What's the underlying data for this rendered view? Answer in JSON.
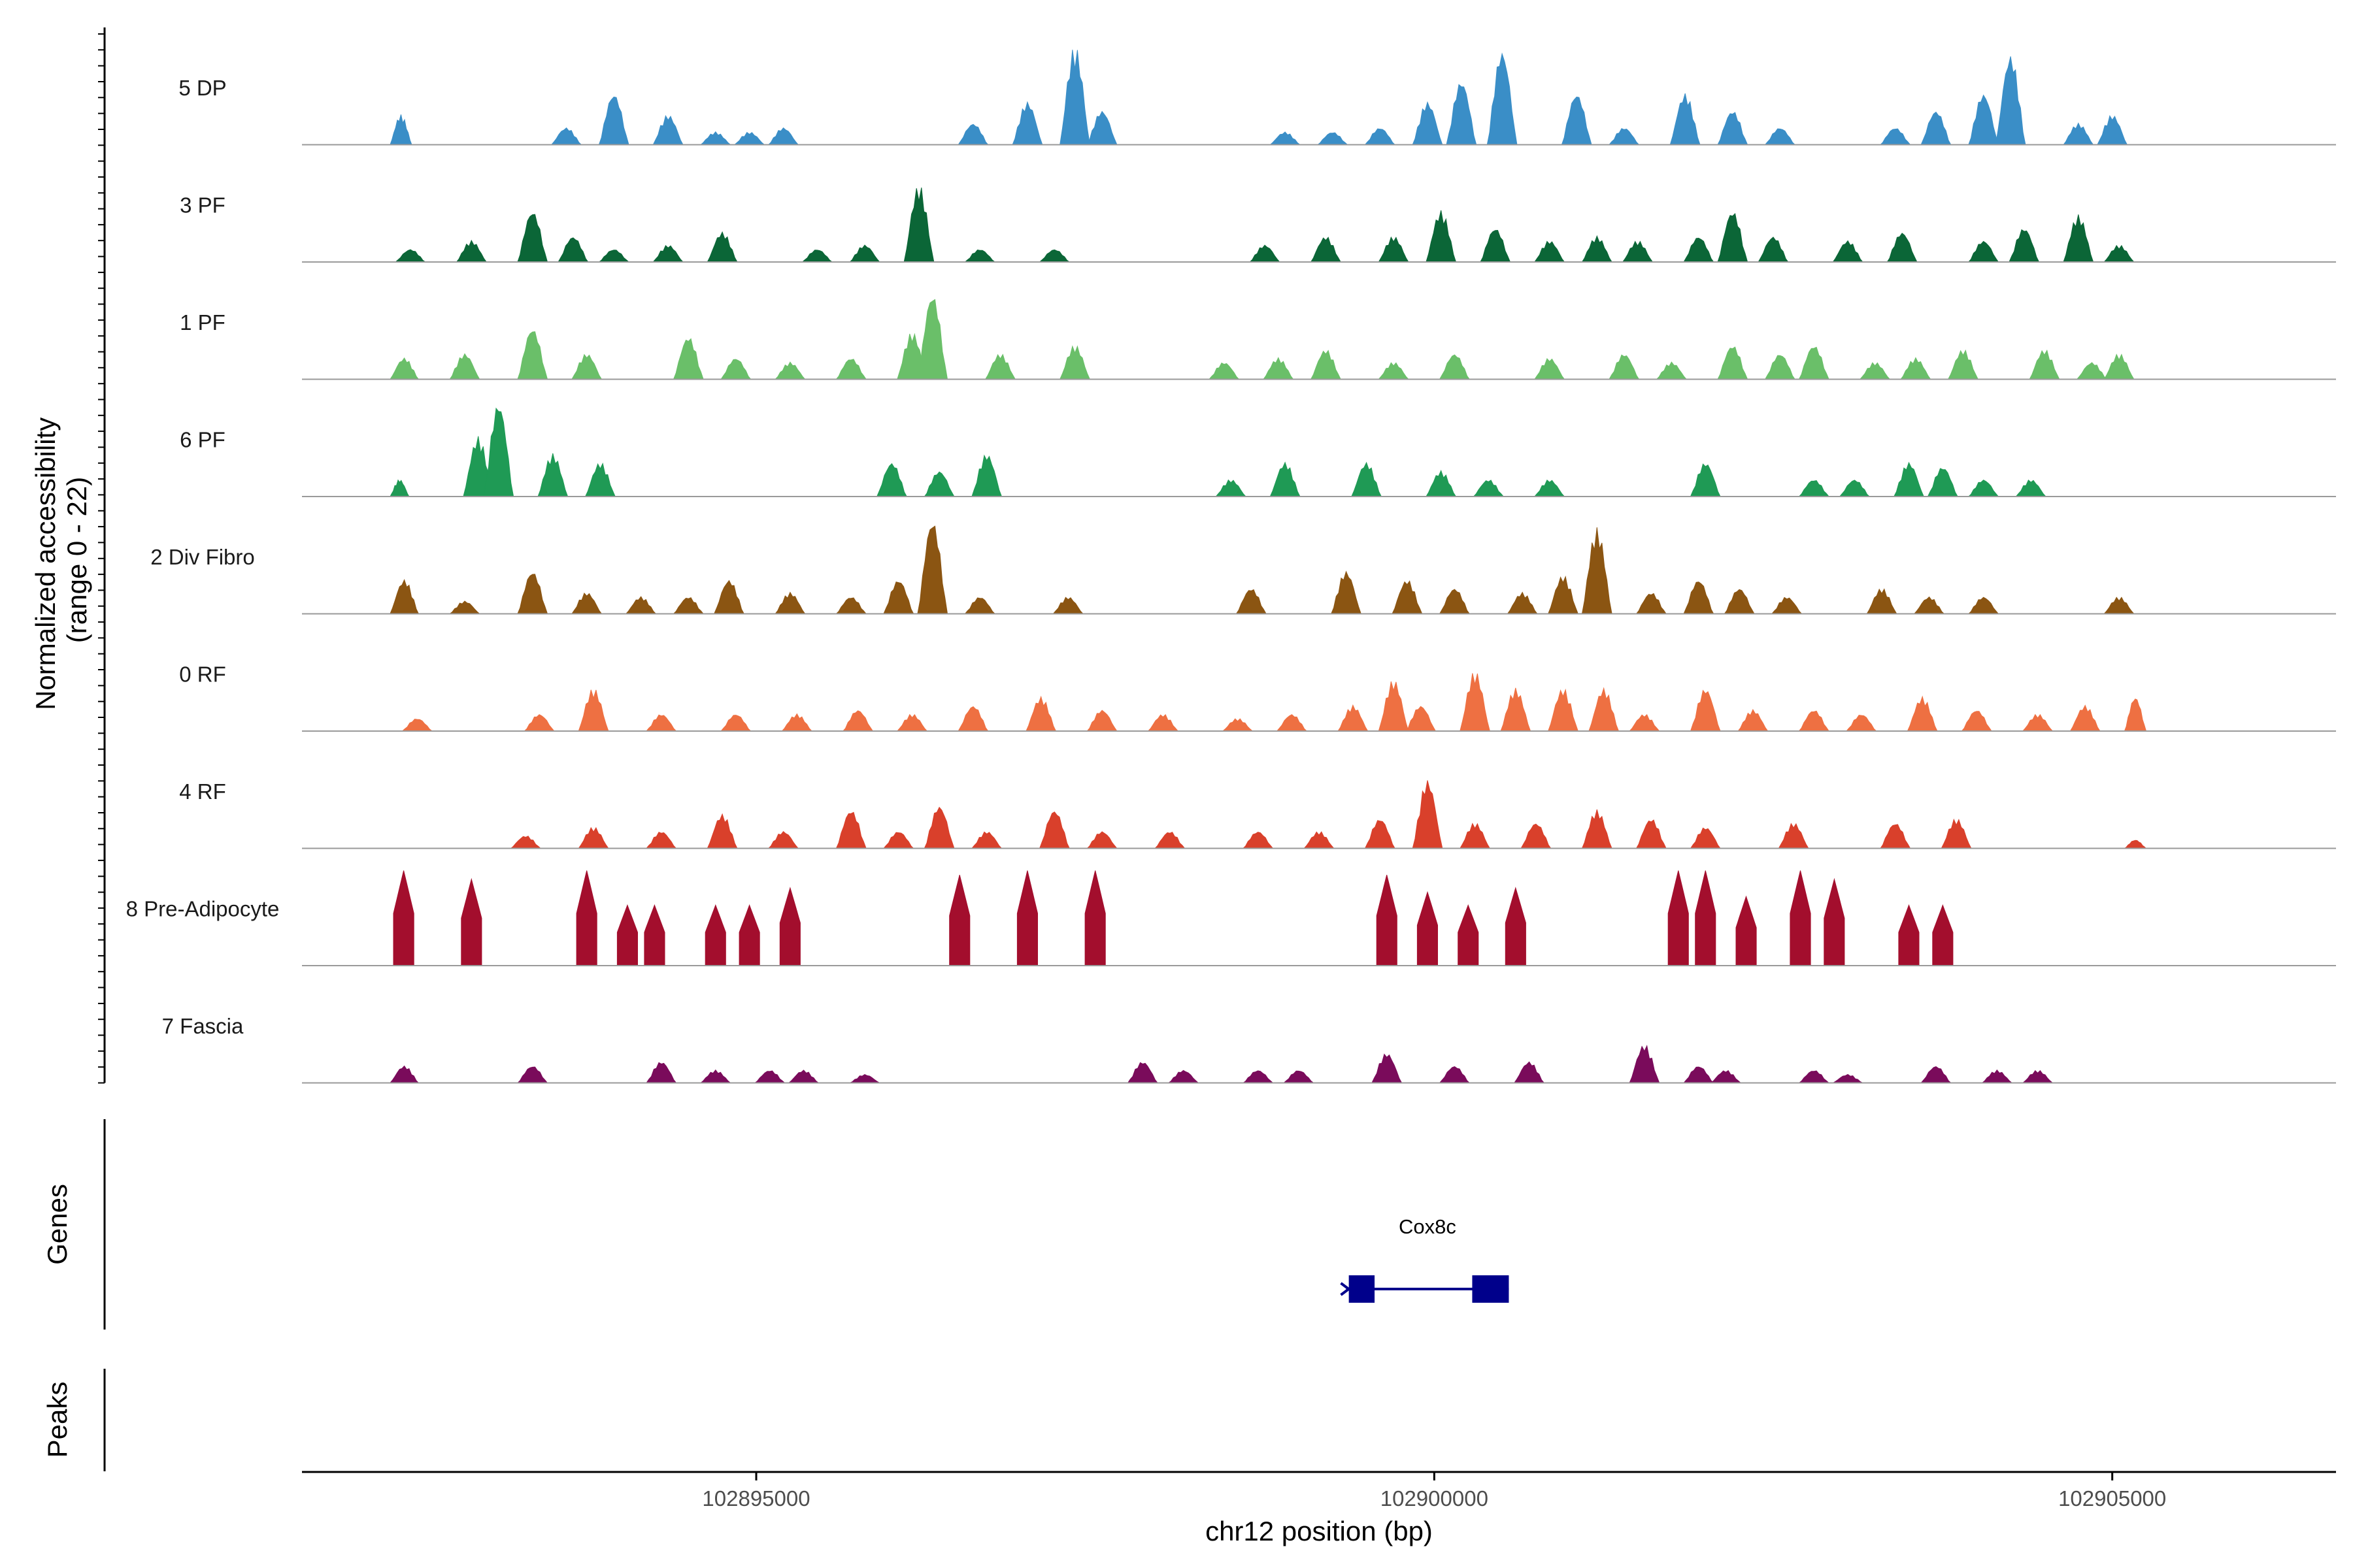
{
  "chart_data": {
    "type": "area",
    "title": "",
    "ylabel": "Normalized accessibility\n(range 0 - 22)",
    "ylabel_lines": [
      "Normalized accessibility",
      "(range 0 - 22)"
    ],
    "ylim": [
      0,
      22
    ],
    "xlabel": "chr12 position (bp)",
    "xlim": [
      102891650,
      102906650
    ],
    "x_ticks": [
      102895000,
      102900000,
      102905000
    ],
    "x_tick_labels": [
      "102895000",
      "102900000",
      "102905000"
    ],
    "region_start": 102892300,
    "region_end": 102905250,
    "tracks": [
      {
        "name": "5 DP",
        "color": "#3a8ec7",
        "peaks": [
          [
            102892350,
            7
          ],
          [
            102893600,
            4
          ],
          [
            102893950,
            12
          ],
          [
            102894350,
            7
          ],
          [
            102894700,
            3
          ],
          [
            102894950,
            3
          ],
          [
            102895200,
            4
          ],
          [
            102896600,
            5
          ],
          [
            102897000,
            10
          ],
          [
            102897350,
            23
          ],
          [
            102897550,
            8
          ],
          [
            102898900,
            3
          ],
          [
            102899250,
            3
          ],
          [
            102899600,
            4
          ],
          [
            102899950,
            10
          ],
          [
            102900200,
            15
          ],
          [
            102900500,
            22
          ],
          [
            102901050,
            12
          ],
          [
            102901400,
            4
          ],
          [
            102901850,
            12
          ],
          [
            102902200,
            8
          ],
          [
            102902550,
            4
          ],
          [
            102903400,
            4
          ],
          [
            102903700,
            8
          ],
          [
            102904050,
            12
          ],
          [
            102904250,
            21
          ],
          [
            102904750,
            5
          ],
          [
            102905000,
            7
          ]
        ]
      },
      {
        "name": "3 PF",
        "color": "#0b6637",
        "peaks": [
          [
            102892450,
            3
          ],
          [
            102892900,
            5
          ],
          [
            102893350,
            12
          ],
          [
            102893650,
            6
          ],
          [
            102893950,
            3
          ],
          [
            102894350,
            4
          ],
          [
            102894750,
            7
          ],
          [
            102895450,
            3
          ],
          [
            102895800,
            4
          ],
          [
            102896200,
            18
          ],
          [
            102896650,
            3
          ],
          [
            102897200,
            3
          ],
          [
            102898750,
            4
          ],
          [
            102899200,
            6
          ],
          [
            102899700,
            6
          ],
          [
            102900050,
            12
          ],
          [
            102900450,
            8
          ],
          [
            102900850,
            5
          ],
          [
            102901200,
            6
          ],
          [
            102901500,
            5
          ],
          [
            102901950,
            6
          ],
          [
            102902200,
            12
          ],
          [
            102902500,
            6
          ],
          [
            102903050,
            5
          ],
          [
            102903450,
            7
          ],
          [
            102904050,
            5
          ],
          [
            102904350,
            8
          ],
          [
            102904750,
            11
          ],
          [
            102905050,
            4
          ]
        ]
      },
      {
        "name": "1 PF",
        "color": "#6abf69",
        "peaks": [
          [
            102892400,
            5
          ],
          [
            102892850,
            6
          ],
          [
            102893350,
            12
          ],
          [
            102893750,
            6
          ],
          [
            102894500,
            10
          ],
          [
            102894850,
            5
          ],
          [
            102895250,
            4
          ],
          [
            102895700,
            5
          ],
          [
            102896150,
            11
          ],
          [
            102896300,
            20
          ],
          [
            102896800,
            6
          ],
          [
            102897350,
            8
          ],
          [
            102898450,
            4
          ],
          [
            102898850,
            5
          ],
          [
            102899200,
            7
          ],
          [
            102899700,
            4
          ],
          [
            102900150,
            6
          ],
          [
            102900850,
            5
          ],
          [
            102901400,
            6
          ],
          [
            102901750,
            4
          ],
          [
            102902200,
            8
          ],
          [
            102902550,
            6
          ],
          [
            102902800,
            8
          ],
          [
            102903250,
            4
          ],
          [
            102903550,
            5
          ],
          [
            102903900,
            7
          ],
          [
            102904500,
            7
          ],
          [
            102904850,
            4
          ],
          [
            102905050,
            6
          ]
        ]
      },
      {
        "name": "6 PF",
        "color": "#1f9a55",
        "peaks": [
          [
            102892330,
            4
          ],
          [
            102892950,
            14
          ],
          [
            102893100,
            22
          ],
          [
            102893500,
            10
          ],
          [
            102893850,
            8
          ],
          [
            102896000,
            8
          ],
          [
            102896350,
            6
          ],
          [
            102896700,
            10
          ],
          [
            102898500,
            4
          ],
          [
            102898900,
            8
          ],
          [
            102899500,
            8
          ],
          [
            102900050,
            6
          ],
          [
            102900400,
            4
          ],
          [
            102900850,
            4
          ],
          [
            102902000,
            8
          ],
          [
            102902800,
            4
          ],
          [
            102903100,
            4
          ],
          [
            102903500,
            8
          ],
          [
            102903750,
            7
          ],
          [
            102904050,
            4
          ],
          [
            102904400,
            4
          ]
        ]
      },
      {
        "name": "2 Div Fibro",
        "color": "#8b5512",
        "peaks": [
          [
            102892400,
            8
          ],
          [
            102892850,
            3
          ],
          [
            102893350,
            10
          ],
          [
            102893750,
            5
          ],
          [
            102894150,
            4
          ],
          [
            102894500,
            4
          ],
          [
            102894800,
            8
          ],
          [
            102895250,
            5
          ],
          [
            102895700,
            4
          ],
          [
            102896050,
            8
          ],
          [
            102896300,
            22
          ],
          [
            102896650,
            4
          ],
          [
            102897300,
            4
          ],
          [
            102898650,
            6
          ],
          [
            102899350,
            10
          ],
          [
            102899800,
            8
          ],
          [
            102900150,
            6
          ],
          [
            102900650,
            5
          ],
          [
            102900950,
            9
          ],
          [
            102901200,
            20
          ],
          [
            102901600,
            5
          ],
          [
            102901950,
            8
          ],
          [
            102902250,
            6
          ],
          [
            102902600,
            4
          ],
          [
            102903300,
            6
          ],
          [
            102903650,
            4
          ],
          [
            102904050,
            4
          ],
          [
            102905050,
            4
          ]
        ]
      },
      {
        "name": "0 RF",
        "color": "#ee7042",
        "peaks": [
          [
            102892500,
            3
          ],
          [
            102893400,
            4
          ],
          [
            102893800,
            10
          ],
          [
            102894300,
            4
          ],
          [
            102894850,
            4
          ],
          [
            102895300,
            4
          ],
          [
            102895750,
            5
          ],
          [
            102896150,
            4
          ],
          [
            102896600,
            6
          ],
          [
            102897100,
            8
          ],
          [
            102897550,
            5
          ],
          [
            102898000,
            4
          ],
          [
            102898550,
            3
          ],
          [
            102898950,
            4
          ],
          [
            102899400,
            6
          ],
          [
            102899700,
            12
          ],
          [
            102899900,
            6
          ],
          [
            102900300,
            14
          ],
          [
            102900600,
            10
          ],
          [
            102900950,
            10
          ],
          [
            102901250,
            10
          ],
          [
            102901550,
            4
          ],
          [
            102902000,
            10
          ],
          [
            102902350,
            5
          ],
          [
            102902800,
            5
          ],
          [
            102903150,
            4
          ],
          [
            102903600,
            8
          ],
          [
            102904000,
            5
          ],
          [
            102904450,
            4
          ],
          [
            102904800,
            6
          ],
          [
            102905200,
            8
          ]
        ]
      },
      {
        "name": "4 RF",
        "color": "#d9402b",
        "peaks": [
          [
            102893300,
            3
          ],
          [
            102893800,
            5
          ],
          [
            102894300,
            4
          ],
          [
            102894750,
            8
          ],
          [
            102895200,
            4
          ],
          [
            102895700,
            9
          ],
          [
            102896050,
            4
          ],
          [
            102896350,
            10
          ],
          [
            102896700,
            4
          ],
          [
            102897200,
            9
          ],
          [
            102897550,
            4
          ],
          [
            102898050,
            4
          ],
          [
            102898700,
            4
          ],
          [
            102899150,
            4
          ],
          [
            102899600,
            7
          ],
          [
            102899950,
            16
          ],
          [
            102900300,
            6
          ],
          [
            102900750,
            6
          ],
          [
            102901200,
            9
          ],
          [
            102901600,
            7
          ],
          [
            102902000,
            5
          ],
          [
            102902650,
            6
          ],
          [
            102903400,
            6
          ],
          [
            102903850,
            7
          ],
          [
            102905200,
            2
          ]
        ]
      },
      {
        "name": "8 Pre-Adipocyte",
        "color": "#a30e2d",
        "peaks": [
          [
            102892400,
            22
          ],
          [
            102892900,
            20
          ],
          [
            102893750,
            22
          ],
          [
            102894050,
            14
          ],
          [
            102894250,
            14
          ],
          [
            102894700,
            14
          ],
          [
            102894950,
            14
          ],
          [
            102895250,
            18
          ],
          [
            102896500,
            21
          ],
          [
            102897000,
            22
          ],
          [
            102897500,
            22
          ],
          [
            102899650,
            21
          ],
          [
            102899950,
            17
          ],
          [
            102900250,
            14
          ],
          [
            102900600,
            18
          ],
          [
            102901800,
            22
          ],
          [
            102902000,
            22
          ],
          [
            102902300,
            16
          ],
          [
            102902700,
            22
          ],
          [
            102902950,
            20
          ],
          [
            102903500,
            14
          ],
          [
            102903750,
            14
          ]
        ]
      },
      {
        "name": "7 Fascia",
        "color": "#7a0b5b",
        "peaks": [
          [
            102892400,
            4
          ],
          [
            102893350,
            4
          ],
          [
            102894300,
            5
          ],
          [
            102894700,
            3
          ],
          [
            102895100,
            3
          ],
          [
            102895350,
            3
          ],
          [
            102895800,
            2
          ],
          [
            102897850,
            5
          ],
          [
            102898150,
            3
          ],
          [
            102898700,
            3
          ],
          [
            102899000,
            3
          ],
          [
            102899650,
            7
          ],
          [
            102900150,
            4
          ],
          [
            102900700,
            5
          ],
          [
            102901550,
            9
          ],
          [
            102901950,
            4
          ],
          [
            102902150,
            3
          ],
          [
            102902800,
            3
          ],
          [
            102903050,
            2
          ],
          [
            102903700,
            4
          ],
          [
            102904150,
            3
          ],
          [
            102904450,
            3
          ]
        ]
      }
    ],
    "genes": [
      {
        "name": "Cox8c",
        "start": 102899350,
        "end": 102900550,
        "strand": "+",
        "exons": [
          [
            102899370,
            102899560
          ],
          [
            102900280,
            102900550
          ]
        ]
      }
    ],
    "peaks_track": []
  },
  "panels": {
    "genes_label": "Genes",
    "peaks_label": "Peaks"
  },
  "colors": {
    "baseline": "#9a9a9a",
    "axis": "#000000",
    "gene": "#00008b"
  }
}
